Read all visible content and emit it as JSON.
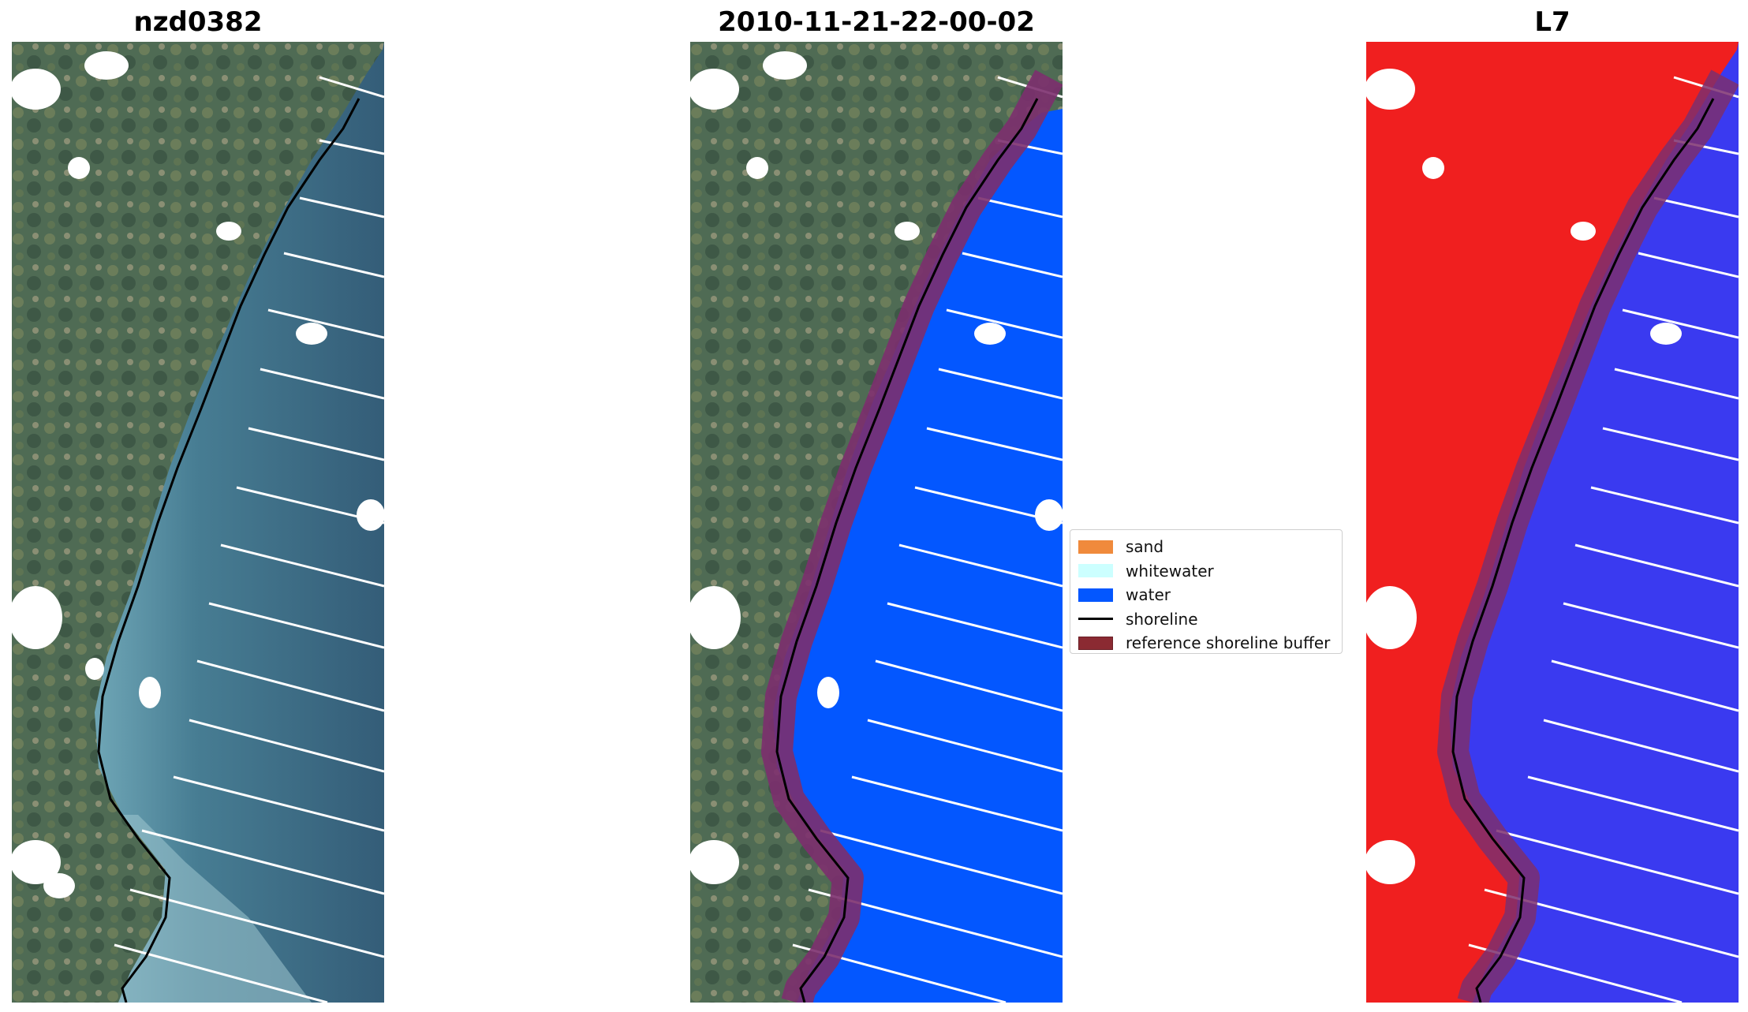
{
  "panels": [
    {
      "title": "nzd0382",
      "kind": "rgb"
    },
    {
      "title": "2010-11-21-22-00-02",
      "kind": "classified"
    },
    {
      "title": "L7",
      "kind": "index"
    }
  ],
  "legend": {
    "items": [
      {
        "label": "sand",
        "color": "#f08a3c",
        "kind": "patch"
      },
      {
        "label": "whitewater",
        "color": "#ccffff",
        "kind": "patch"
      },
      {
        "label": "water",
        "color": "#0357ff",
        "kind": "patch"
      },
      {
        "label": "shoreline",
        "color": "#000000",
        "kind": "line"
      },
      {
        "label": "reference shoreline buffer",
        "color": "#8b2a32",
        "kind": "patch"
      }
    ]
  },
  "colors": {
    "land": "#4f6b54",
    "sea_rgb": "#3f6f86",
    "water_class": "#0357ff",
    "buffer": "#7c2f6e",
    "index_land": "#f01f1f",
    "index_water": "#3a3af0",
    "cloud": "#ffffff",
    "shoreline": "#000000"
  }
}
